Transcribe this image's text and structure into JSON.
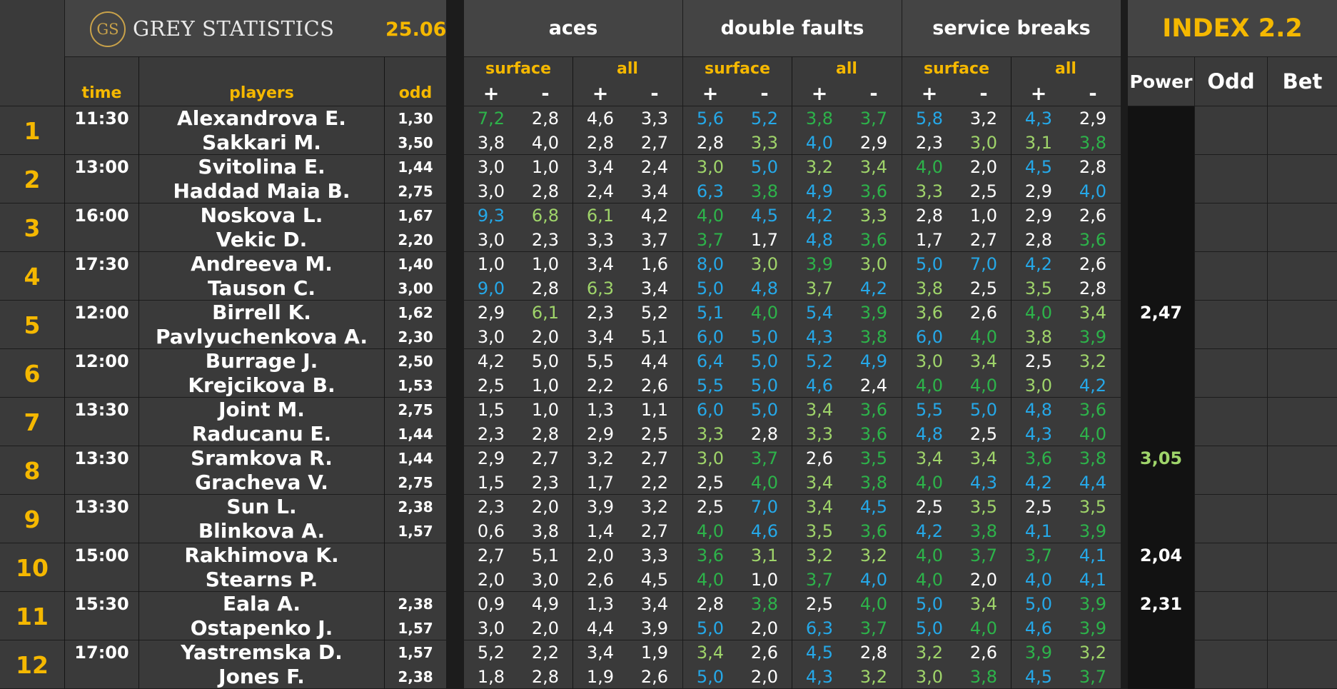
{
  "brand": {
    "logo_text": "GS",
    "name": "GREY STATISTICS",
    "date": "25.06"
  },
  "header": {
    "groups": [
      "aces",
      "double faults",
      "service breaks"
    ],
    "surface": "surface",
    "all": "all",
    "plus": "+",
    "minus": "-",
    "time": "time",
    "players": "players",
    "odd": "odd",
    "index_title": "INDEX 2.2",
    "power": "Power",
    "odd_col": "Odd",
    "bet": "Bet"
  },
  "colors": {
    "gold": "#f5b800",
    "green": "#2db34a",
    "light_green": "#9fd46a",
    "blue": "#25a8e8",
    "white": "#ffffff"
  },
  "matches": [
    {
      "num": "1",
      "time": "11:30",
      "p": [
        "Alexandrova E.",
        "Sakkari M."
      ],
      "odd": [
        "1,30",
        "3,50"
      ],
      "stats": [
        [
          "7,2",
          "2,8",
          "4,6",
          "3,3",
          "5,6",
          "5,2",
          "3,8",
          "3,7",
          "5,8",
          "3,2",
          "4,3",
          "2,9"
        ],
        [
          "3,8",
          "4,0",
          "2,8",
          "2,7",
          "2,8",
          "3,3",
          "4,0",
          "2,9",
          "2,3",
          "3,0",
          "3,1",
          "3,8"
        ]
      ],
      "colors": [
        [
          "g",
          "w",
          "w",
          "w",
          "b",
          "b",
          "g",
          "g",
          "b",
          "w",
          "b",
          "w"
        ],
        [
          "w",
          "w",
          "w",
          "w",
          "w",
          "l",
          "b",
          "w",
          "w",
          "l",
          "l",
          "g"
        ]
      ],
      "power": "",
      "power_color": "w"
    },
    {
      "num": "2",
      "time": "13:00",
      "p": [
        "Svitolina E.",
        "Haddad Maia B."
      ],
      "odd": [
        "1,44",
        "2,75"
      ],
      "stats": [
        [
          "3,0",
          "1,0",
          "3,4",
          "2,4",
          "3,0",
          "5,0",
          "3,2",
          "3,4",
          "4,0",
          "2,0",
          "4,5",
          "2,8"
        ],
        [
          "3,0",
          "2,8",
          "2,4",
          "3,4",
          "6,3",
          "3,8",
          "4,9",
          "3,6",
          "3,3",
          "2,5",
          "2,9",
          "4,0"
        ]
      ],
      "colors": [
        [
          "w",
          "w",
          "w",
          "w",
          "l",
          "b",
          "l",
          "l",
          "g",
          "w",
          "b",
          "w"
        ],
        [
          "w",
          "w",
          "w",
          "w",
          "b",
          "g",
          "b",
          "g",
          "l",
          "w",
          "w",
          "b"
        ]
      ],
      "power": "",
      "power_color": "w"
    },
    {
      "num": "3",
      "time": "16:00",
      "p": [
        "Noskova L.",
        "Vekic D."
      ],
      "odd": [
        "1,67",
        "2,20"
      ],
      "stats": [
        [
          "9,3",
          "6,8",
          "6,1",
          "4,2",
          "4,0",
          "4,5",
          "4,2",
          "3,3",
          "2,8",
          "1,0",
          "2,9",
          "2,6"
        ],
        [
          "3,0",
          "2,3",
          "3,3",
          "3,7",
          "3,7",
          "1,7",
          "4,8",
          "3,6",
          "1,7",
          "2,7",
          "2,8",
          "3,6"
        ]
      ],
      "colors": [
        [
          "b",
          "l",
          "l",
          "w",
          "g",
          "b",
          "b",
          "l",
          "w",
          "w",
          "w",
          "w"
        ],
        [
          "w",
          "w",
          "w",
          "w",
          "g",
          "w",
          "b",
          "g",
          "w",
          "w",
          "w",
          "g"
        ]
      ],
      "power": "",
      "power_color": "w"
    },
    {
      "num": "4",
      "time": "17:30",
      "p": [
        "Andreeva M.",
        "Tauson C."
      ],
      "odd": [
        "1,40",
        "3,00"
      ],
      "stats": [
        [
          "1,0",
          "1,0",
          "3,4",
          "1,6",
          "8,0",
          "3,0",
          "3,9",
          "3,0",
          "5,0",
          "7,0",
          "4,2",
          "2,6"
        ],
        [
          "9,0",
          "2,8",
          "6,3",
          "3,4",
          "5,0",
          "4,8",
          "3,7",
          "4,2",
          "3,8",
          "2,5",
          "3,5",
          "2,8"
        ]
      ],
      "colors": [
        [
          "w",
          "w",
          "w",
          "w",
          "b",
          "l",
          "g",
          "l",
          "b",
          "b",
          "b",
          "w"
        ],
        [
          "b",
          "w",
          "l",
          "w",
          "b",
          "b",
          "l",
          "b",
          "l",
          "w",
          "l",
          "w"
        ]
      ],
      "power": "",
      "power_color": "w"
    },
    {
      "num": "5",
      "time": "12:00",
      "p": [
        "Birrell K.",
        "Pavlyuchenkova A."
      ],
      "odd": [
        "1,62",
        "2,30"
      ],
      "stats": [
        [
          "2,9",
          "6,1",
          "2,3",
          "5,2",
          "5,1",
          "4,0",
          "5,4",
          "3,9",
          "3,6",
          "2,6",
          "4,0",
          "3,4"
        ],
        [
          "3,0",
          "2,0",
          "3,4",
          "5,1",
          "6,0",
          "5,0",
          "4,3",
          "3,8",
          "6,0",
          "4,0",
          "3,8",
          "3,9"
        ]
      ],
      "colors": [
        [
          "w",
          "l",
          "w",
          "w",
          "b",
          "g",
          "b",
          "g",
          "l",
          "w",
          "g",
          "l"
        ],
        [
          "w",
          "w",
          "w",
          "w",
          "b",
          "b",
          "b",
          "g",
          "b",
          "g",
          "l",
          "g"
        ]
      ],
      "power": "2,47",
      "power_color": "w"
    },
    {
      "num": "6",
      "time": "12:00",
      "p": [
        "Burrage J.",
        "Krejcikova B."
      ],
      "odd": [
        "2,50",
        "1,53"
      ],
      "stats": [
        [
          "4,2",
          "5,0",
          "5,5",
          "4,4",
          "6,4",
          "5,0",
          "5,2",
          "4,9",
          "3,0",
          "3,4",
          "2,5",
          "3,2"
        ],
        [
          "2,5",
          "1,0",
          "2,2",
          "2,6",
          "5,5",
          "5,0",
          "4,6",
          "2,4",
          "4,0",
          "4,0",
          "3,0",
          "4,2"
        ]
      ],
      "colors": [
        [
          "w",
          "w",
          "w",
          "w",
          "b",
          "b",
          "b",
          "b",
          "l",
          "l",
          "w",
          "l"
        ],
        [
          "w",
          "w",
          "w",
          "w",
          "b",
          "b",
          "b",
          "w",
          "g",
          "g",
          "l",
          "b"
        ]
      ],
      "power": "",
      "power_color": "w"
    },
    {
      "num": "7",
      "time": "13:30",
      "p": [
        "Joint M.",
        "Raducanu E."
      ],
      "odd": [
        "2,75",
        "1,44"
      ],
      "stats": [
        [
          "1,5",
          "1,0",
          "1,3",
          "1,1",
          "6,0",
          "5,0",
          "3,4",
          "3,6",
          "5,5",
          "5,0",
          "4,8",
          "3,6"
        ],
        [
          "2,3",
          "2,8",
          "2,9",
          "2,5",
          "3,3",
          "2,8",
          "3,3",
          "3,6",
          "4,8",
          "2,5",
          "4,3",
          "4,0"
        ]
      ],
      "colors": [
        [
          "w",
          "w",
          "w",
          "w",
          "b",
          "b",
          "l",
          "g",
          "b",
          "b",
          "b",
          "g"
        ],
        [
          "w",
          "w",
          "w",
          "w",
          "l",
          "w",
          "l",
          "g",
          "b",
          "w",
          "b",
          "g"
        ]
      ],
      "power": "",
      "power_color": "w"
    },
    {
      "num": "8",
      "time": "13:30",
      "p": [
        "Sramkova R.",
        "Gracheva V."
      ],
      "odd": [
        "1,44",
        "2,75"
      ],
      "stats": [
        [
          "2,9",
          "2,7",
          "3,2",
          "2,7",
          "3,0",
          "3,7",
          "2,6",
          "3,5",
          "3,4",
          "3,4",
          "3,6",
          "3,8"
        ],
        [
          "1,5",
          "2,3",
          "1,7",
          "2,2",
          "2,5",
          "4,0",
          "3,4",
          "3,8",
          "4,0",
          "4,3",
          "4,2",
          "4,4"
        ]
      ],
      "colors": [
        [
          "w",
          "w",
          "w",
          "w",
          "l",
          "g",
          "w",
          "g",
          "l",
          "l",
          "g",
          "g"
        ],
        [
          "w",
          "w",
          "w",
          "w",
          "w",
          "g",
          "l",
          "g",
          "g",
          "b",
          "b",
          "b"
        ]
      ],
      "power": "3,05",
      "power_color": "l"
    },
    {
      "num": "9",
      "time": "13:30",
      "p": [
        "Sun L.",
        "Blinkova A."
      ],
      "odd": [
        "2,38",
        "1,57"
      ],
      "stats": [
        [
          "2,3",
          "2,0",
          "3,9",
          "3,2",
          "2,5",
          "7,0",
          "3,4",
          "4,5",
          "2,5",
          "3,5",
          "2,5",
          "3,5"
        ],
        [
          "0,6",
          "3,8",
          "1,4",
          "2,7",
          "4,0",
          "4,6",
          "3,5",
          "3,6",
          "4,2",
          "3,8",
          "4,1",
          "3,9"
        ]
      ],
      "colors": [
        [
          "w",
          "w",
          "w",
          "w",
          "w",
          "b",
          "l",
          "b",
          "w",
          "l",
          "w",
          "l"
        ],
        [
          "w",
          "w",
          "w",
          "w",
          "g",
          "b",
          "l",
          "g",
          "b",
          "g",
          "b",
          "g"
        ]
      ],
      "power": "",
      "power_color": "w"
    },
    {
      "num": "10",
      "time": "15:00",
      "p": [
        "Rakhimova K.",
        "Stearns P."
      ],
      "odd": [
        "",
        ""
      ],
      "stats": [
        [
          "2,7",
          "5,1",
          "2,0",
          "3,3",
          "3,6",
          "3,1",
          "3,2",
          "3,2",
          "4,0",
          "3,7",
          "3,7",
          "4,1"
        ],
        [
          "2,0",
          "3,0",
          "2,6",
          "4,5",
          "4,0",
          "1,0",
          "3,7",
          "4,0",
          "4,0",
          "2,0",
          "4,0",
          "4,1"
        ]
      ],
      "colors": [
        [
          "w",
          "w",
          "w",
          "w",
          "g",
          "l",
          "l",
          "l",
          "g",
          "g",
          "g",
          "b"
        ],
        [
          "w",
          "w",
          "w",
          "w",
          "g",
          "w",
          "g",
          "b",
          "g",
          "w",
          "b",
          "b"
        ]
      ],
      "power": "2,04",
      "power_color": "w"
    },
    {
      "num": "11",
      "time": "15:30",
      "p": [
        "Eala A.",
        "Ostapenko J."
      ],
      "odd": [
        "2,38",
        "1,57"
      ],
      "stats": [
        [
          "0,9",
          "4,9",
          "1,3",
          "3,4",
          "2,8",
          "3,8",
          "2,5",
          "4,0",
          "5,0",
          "3,4",
          "5,0",
          "3,9"
        ],
        [
          "3,0",
          "2,0",
          "4,4",
          "3,9",
          "5,0",
          "2,0",
          "6,3",
          "3,7",
          "5,0",
          "4,0",
          "4,6",
          "3,9"
        ]
      ],
      "colors": [
        [
          "w",
          "w",
          "w",
          "w",
          "w",
          "g",
          "w",
          "g",
          "b",
          "l",
          "b",
          "g"
        ],
        [
          "w",
          "w",
          "w",
          "w",
          "b",
          "w",
          "b",
          "g",
          "b",
          "g",
          "b",
          "g"
        ]
      ],
      "power": "2,31",
      "power_color": "w"
    },
    {
      "num": "12",
      "time": "17:00",
      "p": [
        "Yastremska D.",
        "Jones F."
      ],
      "odd": [
        "1,57",
        "2,38"
      ],
      "stats": [
        [
          "5,2",
          "2,2",
          "3,4",
          "1,9",
          "3,4",
          "2,6",
          "4,5",
          "2,8",
          "3,2",
          "2,6",
          "3,9",
          "3,2"
        ],
        [
          "1,8",
          "2,8",
          "1,9",
          "2,6",
          "5,0",
          "2,0",
          "4,3",
          "3,2",
          "3,0",
          "3,8",
          "4,5",
          "3,7"
        ]
      ],
      "colors": [
        [
          "w",
          "w",
          "w",
          "w",
          "l",
          "w",
          "b",
          "w",
          "l",
          "w",
          "g",
          "l"
        ],
        [
          "w",
          "w",
          "w",
          "w",
          "b",
          "w",
          "b",
          "l",
          "l",
          "g",
          "b",
          "g"
        ]
      ],
      "power": "",
      "power_color": "w"
    }
  ]
}
